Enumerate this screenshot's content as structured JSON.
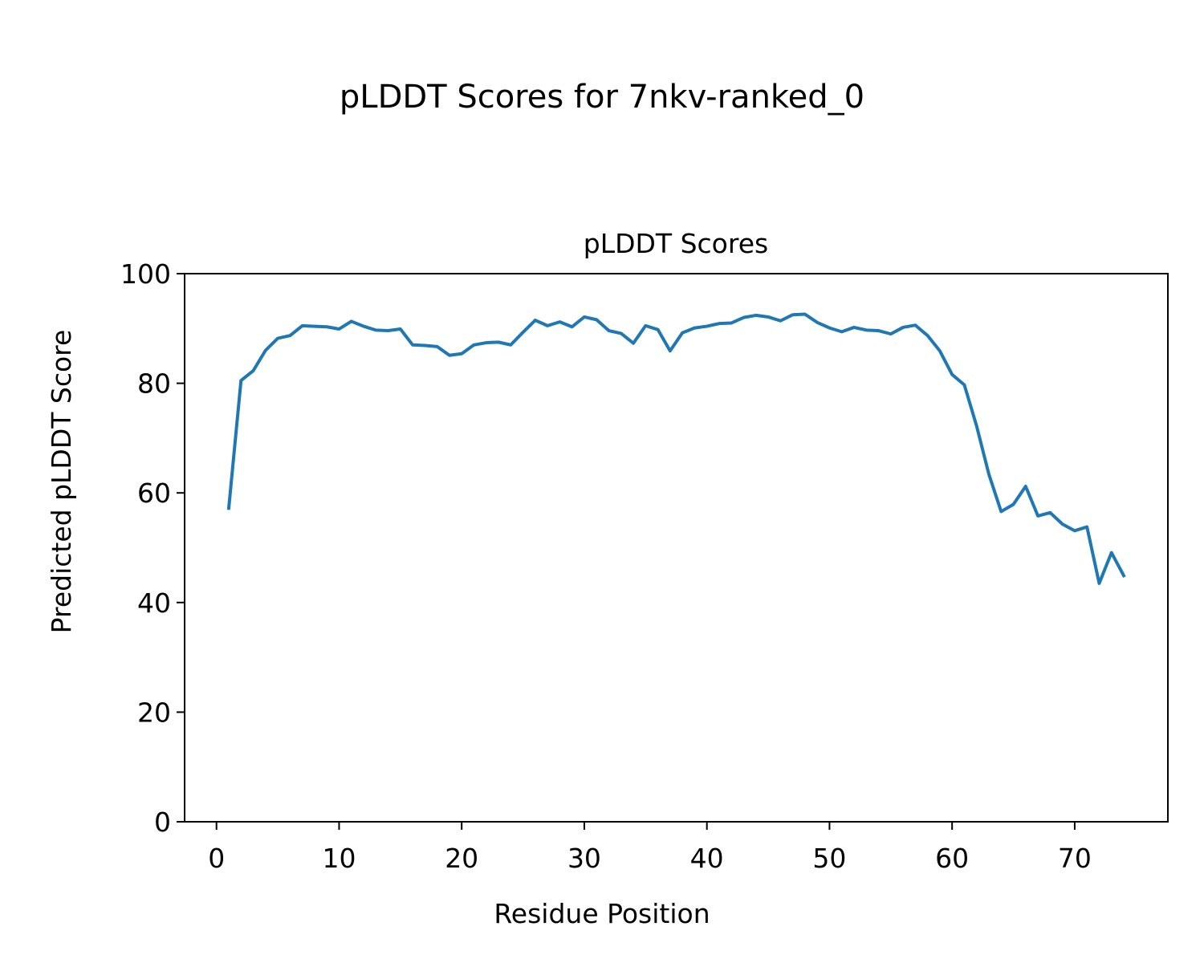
{
  "figure": {
    "suptitle": "pLDDT Scores for 7nkv-ranked_0"
  },
  "chart_data": {
    "type": "line",
    "title": "pLDDT Scores",
    "xlabel": "Residue Position",
    "ylabel": "Predicted pLDDT Score",
    "xlim": [
      -2.6,
      77.6
    ],
    "ylim": [
      0,
      100
    ],
    "xticks": [
      0,
      10,
      20,
      30,
      40,
      50,
      60,
      70
    ],
    "yticks": [
      0,
      20,
      40,
      60,
      80,
      100
    ],
    "grid": false,
    "legend": "none",
    "series": [
      {
        "color": "#1f77b4",
        "x": [
          1,
          2,
          3,
          4,
          5,
          6,
          7,
          8,
          9,
          10,
          11,
          12,
          13,
          14,
          15,
          16,
          17,
          18,
          19,
          20,
          21,
          22,
          23,
          24,
          25,
          26,
          27,
          28,
          29,
          30,
          31,
          32,
          33,
          34,
          35,
          36,
          37,
          38,
          39,
          40,
          41,
          42,
          43,
          44,
          45,
          46,
          47,
          48,
          49,
          50,
          51,
          52,
          53,
          54,
          55,
          56,
          57,
          58,
          59,
          60,
          61,
          62,
          63,
          64,
          65,
          66,
          67,
          68,
          69,
          70,
          71,
          72,
          73,
          74
        ],
        "values": [
          57.2,
          80.5,
          82.3,
          86.0,
          88.2,
          88.7,
          90.5,
          90.4,
          90.3,
          89.9,
          91.3,
          90.4,
          89.7,
          89.6,
          89.9,
          87.0,
          86.9,
          86.7,
          85.1,
          85.4,
          87.0,
          87.4,
          87.5,
          87.0,
          89.3,
          91.5,
          90.5,
          91.2,
          90.3,
          92.1,
          91.6,
          89.6,
          89.1,
          87.3,
          90.5,
          89.8,
          85.9,
          89.2,
          90.1,
          90.4,
          90.9,
          91.0,
          92.0,
          92.4,
          92.1,
          91.4,
          92.5,
          92.6,
          91.1,
          90.1,
          89.4,
          90.2,
          89.7,
          89.6,
          89.0,
          90.2,
          90.6,
          88.7,
          85.9,
          81.6,
          79.7,
          72.2,
          63.4,
          56.6,
          57.9,
          61.2,
          55.8,
          56.4,
          54.3,
          53.1,
          53.8,
          43.5,
          49.1,
          44.9
        ]
      }
    ]
  }
}
